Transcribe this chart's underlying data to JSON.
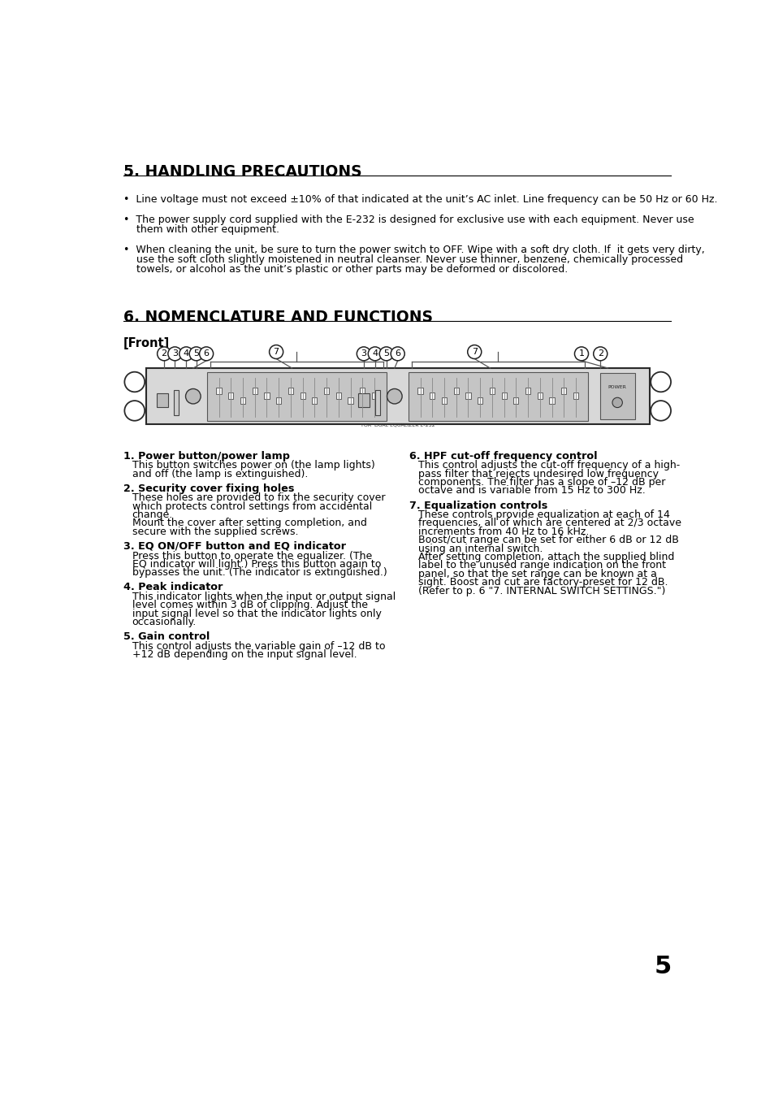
{
  "bg_color": "#ffffff",
  "text_color": "#000000",
  "page_number": "5",
  "section5_title": "5. HANDLING PRECAUTIONS",
  "bullet1": "•  Line voltage must not exceed ±10% of that indicated at the unit’s AC inlet. Line frequency can be 50 Hz or 60 Hz.",
  "bullet2_line1": "•  The power supply cord supplied with the E-232 is designed for exclusive use with each equipment. Never use",
  "bullet2_line2": "    them with other equipment.",
  "bullet3_line1": "•  When cleaning the unit, be sure to turn the power switch to OFF. Wipe with a soft dry cloth. If  it gets very dirty,",
  "bullet3_line2": "    use the soft cloth slightly moistened in neutral cleanser. Never use thinner, benzene, chemically processed",
  "bullet3_line3": "    towels, or alcohol as the unit’s plastic or other parts may be deformed or discolored.",
  "section6_title": "6. NOMENCLATURE AND FUNCTIONS",
  "front_label": "[Front]",
  "item1_title": "1. Power button/power lamp",
  "item1_body": [
    "This button switches power on (the lamp lights)",
    "and off (the lamp is extinguished)."
  ],
  "item2_title": "2. Security cover fixing holes",
  "item2_body": [
    "These holes are provided to fix the security cover",
    "which protects control settings from accidental",
    "change.",
    "Mount the cover after setting completion, and",
    "secure with the supplied screws."
  ],
  "item3_title": "3. EQ ON/OFF button and EQ indicator",
  "item3_body": [
    "Press this button to operate the equalizer. (The",
    "EQ indicator will light.) Press this button again to",
    "bypasses the unit. (The indicator is extinguished.)"
  ],
  "item4_title": "4. Peak indicator",
  "item4_body": [
    "This indicator lights when the input or output signal",
    "level comes within 3 dB of clipping. Adjust the",
    "input signal level so that the indicator lights only",
    "occasionally."
  ],
  "item5_title": "5. Gain control",
  "item5_body": [
    "This control adjusts the variable gain of –12 dB to",
    "+12 dB depending on the input signal level."
  ],
  "item6_title": "6. HPF cut-off frequency control",
  "item6_body": [
    "This control adjusts the cut-off frequency of a high-",
    "pass filter that rejects undesired low frequency",
    "components. The filter has a slope of –12 dB per",
    "octave and is variable from 15 Hz to 300 Hz."
  ],
  "item7_title": "7. Equalization controls",
  "item7_body": [
    "These controls provide equalization at each of 14",
    "frequencies, all of which are centered at 2/3 octave",
    "increments from 40 Hz to 16 kHz.",
    "Boost/cut range can be set for either 6 dB or 12 dB",
    "using an internal switch.",
    "After setting completion, attach the supplied blind",
    "label to the unused range indication on the front",
    "panel, so that the set range can be known at a",
    "sight. Boost and cut are factory-preset for 12 dB.",
    "(Refer to p. 6 \"7. INTERNAL SWITCH SETTINGS.\")"
  ]
}
